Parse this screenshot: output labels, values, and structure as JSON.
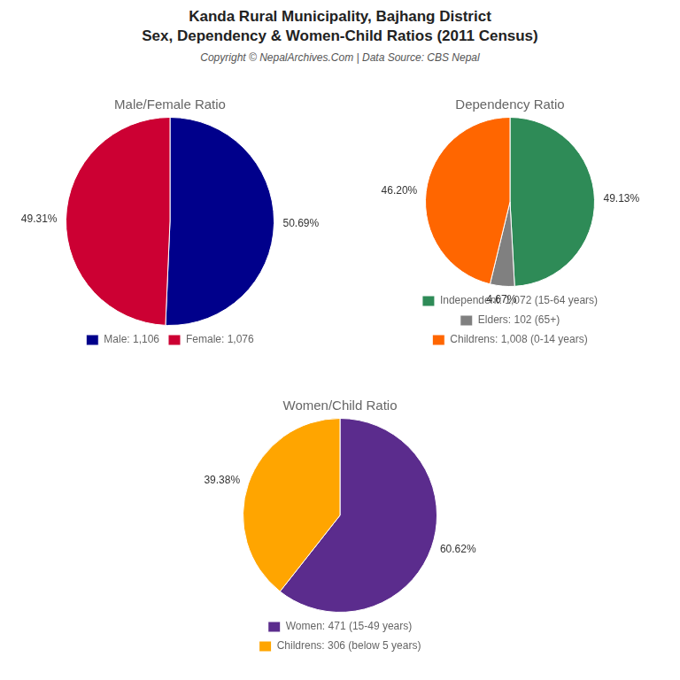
{
  "title": "Kanda Rural Municipality, Bajhang District",
  "subtitle": "Sex, Dependency & Women-Child Ratios (2011 Census)",
  "annotations": [
    "Copyright © NepalArchives.Com | Data Source: CBS Nepal"
  ],
  "chart_data": [
    {
      "type": "pie",
      "title": "Male/Female Ratio",
      "categories": [
        "Male: 1,106",
        "Female: 1,076"
      ],
      "values": [
        50.69,
        49.31
      ],
      "value_labels": [
        "50.69%",
        "49.31%"
      ],
      "colors": [
        "#00008B",
        "#CC0033"
      ],
      "data_labels": true,
      "legend": "bottom"
    },
    {
      "type": "pie",
      "title": "Dependency Ratio",
      "categories": [
        "Independent: 1,072 (15-64 years)",
        "Elders: 102 (65+)",
        "Childrens: 1,008 (0-14 years)"
      ],
      "values": [
        49.13,
        4.67,
        46.2
      ],
      "value_labels": [
        "49.13%",
        "4.67%",
        "46.20%"
      ],
      "colors": [
        "#2E8B57",
        "#808080",
        "#FF6600"
      ],
      "data_labels": true,
      "legend": "bottom"
    },
    {
      "type": "pie",
      "title": "Women/Child Ratio",
      "categories": [
        "Women: 471 (15-49 years)",
        "Childrens: 306 (below 5 years)"
      ],
      "values": [
        60.62,
        39.38
      ],
      "value_labels": [
        "60.62%",
        "39.38%"
      ],
      "colors": [
        "#5B2C8D",
        "#FFA500"
      ],
      "data_labels": true,
      "legend": "bottom"
    }
  ]
}
